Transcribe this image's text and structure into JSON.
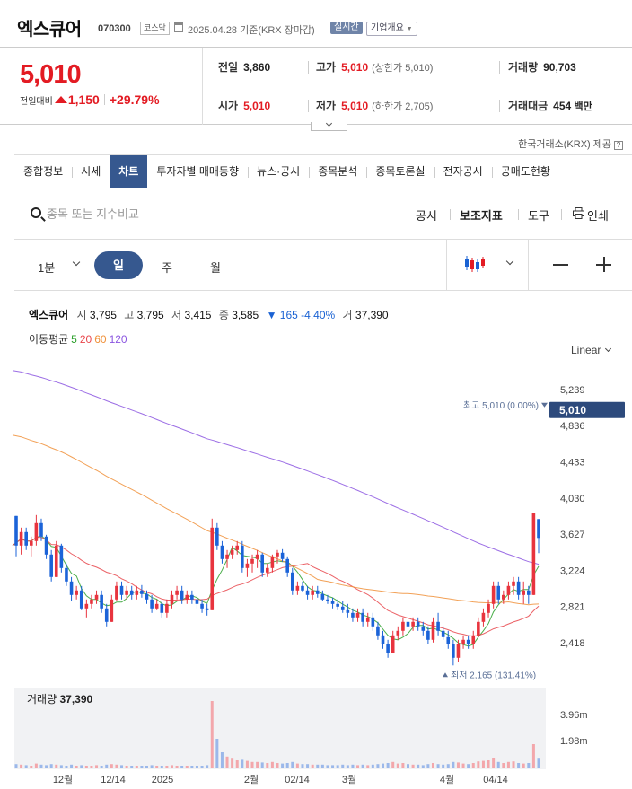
{
  "header": {
    "name": "엑스큐어",
    "code": "070300",
    "market": "코스닥",
    "date": "2025.04.28",
    "basis": "기준(KRX 장마감)",
    "realtime": "실시간",
    "company_overview": "기업개요"
  },
  "price": {
    "current": "5,010",
    "change_label": "전일대비",
    "change": "1,150",
    "change_pct": "+29.79%",
    "prev_close_label": "전일",
    "prev_close": "3,860",
    "high_label": "고가",
    "high": "5,010",
    "upper_limit": "(상한가 5,010)",
    "volume_label": "거래량",
    "volume": "90,703",
    "open_label": "시가",
    "open": "5,010",
    "low_label": "저가",
    "low": "5,010",
    "lower_limit": "(하한가 2,705)",
    "turnover_label": "거래대금",
    "turnover": "454",
    "turnover_unit": "백만"
  },
  "provider": "한국거래소(KRX) 제공",
  "tabs": [
    "종합정보",
    "시세",
    "차트",
    "투자자별 매매동향",
    "뉴스·공시",
    "종목분석",
    "종목토론실",
    "전자공시",
    "공매도현황"
  ],
  "active_tab": "차트",
  "tools": {
    "search_placeholder": "종목 또는 지수비교",
    "disclosure": "공시",
    "indicators": "보조지표",
    "tools": "도구",
    "print": "인쇄"
  },
  "periods": {
    "minute": "1분",
    "day": "일",
    "week": "주",
    "month": "월"
  },
  "chart_legend": {
    "name": "엑스큐어",
    "open_label": "시",
    "open": "3,795",
    "high_label": "고",
    "high": "3,795",
    "low_label": "저",
    "low": "3,415",
    "close_label": "종",
    "close": "3,585",
    "change": "▼ 165 -4.40%",
    "volume_label": "거",
    "volume": "37,390",
    "ma_label": "이동평균",
    "ma": [
      {
        "period": "5",
        "color": "#2ca02c"
      },
      {
        "period": "20",
        "color": "#e8474c"
      },
      {
        "period": "60",
        "color": "#f0913a"
      },
      {
        "period": "120",
        "color": "#8b55e0"
      }
    ],
    "scale": "Linear"
  },
  "chart_data": {
    "type": "candlestick",
    "price_axis": {
      "ticks": [
        2418,
        2821,
        3224,
        3627,
        4030,
        4433,
        4836,
        5239
      ],
      "tick_labels": [
        "2,418",
        "2,821",
        "3,224",
        "3,627",
        "4,030",
        "4,433",
        "4,836",
        "5,239"
      ]
    },
    "last_price_label": "5,010",
    "high_marker": "최고 5,010 (0.00%)",
    "low_marker": "최저 2,165 (131.41%)",
    "x_labels": [
      "12월",
      "12/14",
      "2025",
      "2월",
      "02/14",
      "3월",
      "4월",
      "04/14"
    ],
    "volume_panel": {
      "title_label": "거래량",
      "title_value": "37,390",
      "ticks": [
        "3.96m",
        "1.98m"
      ]
    },
    "candles": [
      [
        3830,
        3830,
        3380,
        3500
      ],
      [
        3500,
        3700,
        3400,
        3650
      ],
      [
        3650,
        3700,
        3450,
        3500
      ],
      [
        3500,
        3600,
        3380,
        3550
      ],
      [
        3550,
        3840,
        3500,
        3750
      ],
      [
        3750,
        3800,
        3550,
        3600
      ],
      [
        3600,
        3620,
        3350,
        3400
      ],
      [
        3400,
        3450,
        3100,
        3150
      ],
      [
        3150,
        3550,
        3150,
        3500
      ],
      [
        3500,
        3520,
        3200,
        3250
      ],
      [
        3250,
        3300,
        3050,
        3100
      ],
      [
        3100,
        3150,
        2880,
        2950
      ],
      [
        2950,
        3050,
        2900,
        3000
      ],
      [
        3000,
        3050,
        2780,
        2800
      ],
      [
        2800,
        2900,
        2700,
        2850
      ],
      [
        2850,
        2950,
        2800,
        2900
      ],
      [
        2900,
        3000,
        2850,
        2950
      ],
      [
        2950,
        3000,
        2750,
        2800
      ],
      [
        2800,
        2850,
        2600,
        2650
      ],
      [
        2650,
        2950,
        2650,
        2900
      ],
      [
        2900,
        3100,
        2880,
        3050
      ],
      [
        3050,
        3100,
        2900,
        2950
      ],
      [
        2950,
        3050,
        2900,
        3000
      ],
      [
        3000,
        3050,
        2900,
        2950
      ],
      [
        2950,
        3050,
        2900,
        3000
      ],
      [
        3000,
        3060,
        2920,
        2960
      ],
      [
        2960,
        3000,
        2850,
        2900
      ],
      [
        2900,
        2950,
        2750,
        2800
      ],
      [
        2800,
        2900,
        2780,
        2850
      ],
      [
        2850,
        2880,
        2700,
        2750
      ],
      [
        2750,
        2900,
        2700,
        2850
      ],
      [
        2850,
        3000,
        2800,
        2950
      ],
      [
        2950,
        3050,
        2900,
        3000
      ],
      [
        3000,
        3050,
        2850,
        2900
      ],
      [
        2900,
        3000,
        2850,
        2950
      ],
      [
        2950,
        3000,
        2850,
        2900
      ],
      [
        2900,
        2950,
        2800,
        2850
      ],
      [
        2850,
        2900,
        2750,
        2800
      ],
      [
        2800,
        2850,
        2720,
        2780
      ],
      [
        2780,
        3800,
        2780,
        3700
      ],
      [
        3700,
        3750,
        3450,
        3500
      ],
      [
        3500,
        3550,
        3300,
        3350
      ],
      [
        3350,
        3450,
        3250,
        3400
      ],
      [
        3400,
        3500,
        3350,
        3450
      ],
      [
        3450,
        3550,
        3400,
        3500
      ],
      [
        3500,
        3550,
        3200,
        3250
      ],
      [
        3250,
        3350,
        3150,
        3300
      ],
      [
        3300,
        3400,
        3200,
        3350
      ],
      [
        3350,
        3450,
        3250,
        3400
      ],
      [
        3400,
        3420,
        3150,
        3200
      ],
      [
        3200,
        3300,
        3150,
        3250
      ],
      [
        3250,
        3400,
        3200,
        3380
      ],
      [
        3380,
        3450,
        3300,
        3420
      ],
      [
        3420,
        3460,
        3320,
        3350
      ],
      [
        3350,
        3380,
        3150,
        3200
      ],
      [
        3200,
        3250,
        2950,
        3000
      ],
      [
        3000,
        3100,
        2950,
        3050
      ],
      [
        3050,
        3100,
        2980,
        3000
      ],
      [
        3000,
        3050,
        2900,
        2950
      ],
      [
        2950,
        3050,
        2900,
        3000
      ],
      [
        3000,
        3050,
        2920,
        2960
      ],
      [
        2960,
        3000,
        2880,
        2900
      ],
      [
        2900,
        2950,
        2850,
        2880
      ],
      [
        2880,
        2920,
        2800,
        2850
      ],
      [
        2850,
        2900,
        2780,
        2820
      ],
      [
        2820,
        2880,
        2750,
        2780
      ],
      [
        2780,
        2850,
        2700,
        2750
      ],
      [
        2750,
        2800,
        2650,
        2700
      ],
      [
        2700,
        2800,
        2650,
        2750
      ],
      [
        2750,
        2800,
        2600,
        2650
      ],
      [
        2650,
        2750,
        2600,
        2700
      ],
      [
        2700,
        2750,
        2550,
        2600
      ],
      [
        2600,
        2650,
        2450,
        2500
      ],
      [
        2500,
        2550,
        2350,
        2400
      ],
      [
        2400,
        2450,
        2250,
        2300
      ],
      [
        2300,
        2550,
        2300,
        2500
      ],
      [
        2500,
        2600,
        2450,
        2550
      ],
      [
        2550,
        2700,
        2500,
        2650
      ],
      [
        2650,
        2700,
        2550,
        2600
      ],
      [
        2600,
        2700,
        2550,
        2650
      ],
      [
        2650,
        2700,
        2550,
        2600
      ],
      [
        2600,
        2650,
        2500,
        2550
      ],
      [
        2550,
        2600,
        2400,
        2450
      ],
      [
        2450,
        2700,
        2420,
        2650
      ],
      [
        2650,
        2750,
        2500,
        2550
      ],
      [
        2550,
        2600,
        2450,
        2480
      ],
      [
        2480,
        2550,
        2350,
        2400
      ],
      [
        2400,
        2450,
        2165,
        2250
      ],
      [
        2250,
        2450,
        2200,
        2400
      ],
      [
        2400,
        2500,
        2350,
        2450
      ],
      [
        2450,
        2500,
        2350,
        2400
      ],
      [
        2400,
        2550,
        2350,
        2500
      ],
      [
        2500,
        2700,
        2480,
        2650
      ],
      [
        2650,
        2800,
        2600,
        2750
      ],
      [
        2750,
        2900,
        2700,
        2850
      ],
      [
        2850,
        3100,
        2800,
        3050
      ],
      [
        3050,
        3100,
        2850,
        2900
      ],
      [
        2900,
        3000,
        2850,
        2950
      ],
      [
        2950,
        3100,
        2900,
        3050
      ],
      [
        3050,
        3150,
        2950,
        3100
      ],
      [
        3100,
        3150,
        2900,
        2950
      ],
      [
        2950,
        3100,
        2850,
        3000
      ],
      [
        3000,
        3050,
        2850,
        2950
      ],
      [
        2950,
        3860,
        2950,
        3860
      ],
      [
        3795,
        3795,
        3415,
        3585
      ]
    ],
    "volumes": [
      0.08,
      0.07,
      0.06,
      0.05,
      0.09,
      0.07,
      0.06,
      0.08,
      0.07,
      0.06,
      0.05,
      0.07,
      0.05,
      0.06,
      0.05,
      0.05,
      0.06,
      0.05,
      0.07,
      0.08,
      0.07,
      0.06,
      0.05,
      0.05,
      0.05,
      0.05,
      0.05,
      0.06,
      0.05,
      0.05,
      0.05,
      0.06,
      0.05,
      0.05,
      0.05,
      0.05,
      0.05,
      0.05,
      0.06,
      1.25,
      0.55,
      0.3,
      0.22,
      0.18,
      0.15,
      0.16,
      0.14,
      0.12,
      0.12,
      0.11,
      0.1,
      0.12,
      0.1,
      0.09,
      0.1,
      0.12,
      0.09,
      0.08,
      0.08,
      0.07,
      0.07,
      0.07,
      0.06,
      0.06,
      0.06,
      0.07,
      0.06,
      0.07,
      0.06,
      0.07,
      0.06,
      0.07,
      0.08,
      0.09,
      0.1,
      0.12,
      0.09,
      0.1,
      0.08,
      0.07,
      0.07,
      0.06,
      0.08,
      0.1,
      0.08,
      0.07,
      0.08,
      0.12,
      0.11,
      0.09,
      0.08,
      0.1,
      0.13,
      0.14,
      0.15,
      0.2,
      0.12,
      0.1,
      0.12,
      0.13,
      0.1,
      0.09,
      0.1,
      0.45,
      0.18
    ]
  }
}
